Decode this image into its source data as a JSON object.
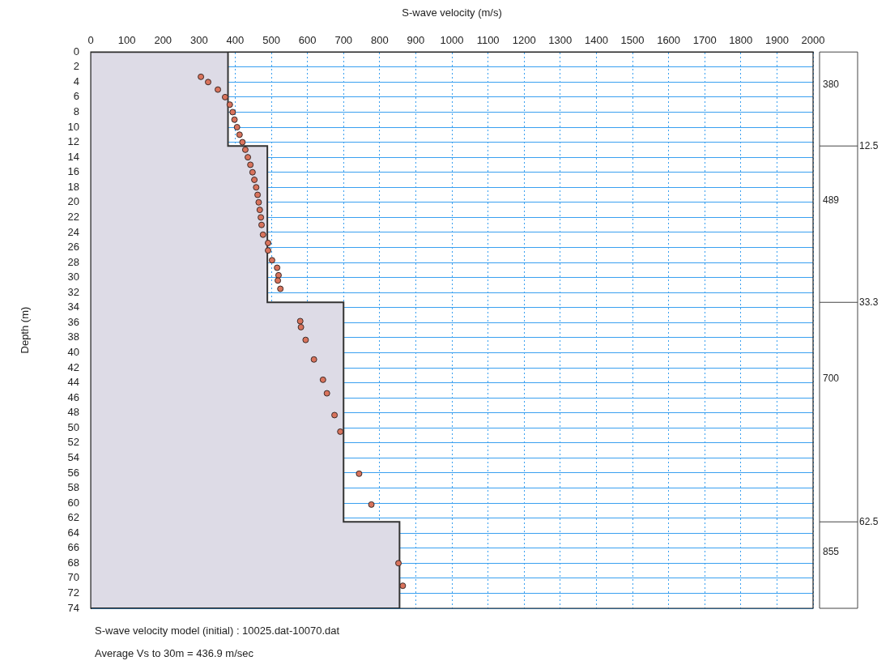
{
  "chart_data": {
    "type": "scatter",
    "xlabel": "S-wave velocity (m/s)",
    "ylabel": "Depth (m)",
    "xlim": [
      0,
      2000
    ],
    "xticks": [
      0,
      100,
      200,
      300,
      400,
      500,
      600,
      700,
      800,
      900,
      1000,
      1100,
      1200,
      1300,
      1400,
      1500,
      1600,
      1700,
      1800,
      1900,
      2000
    ],
    "ylim": [
      74,
      0
    ],
    "yticks": [
      0,
      2,
      4,
      6,
      8,
      10,
      12,
      14,
      16,
      18,
      20,
      22,
      24,
      26,
      28,
      30,
      32,
      34,
      36,
      38,
      40,
      42,
      44,
      46,
      48,
      50,
      52,
      54,
      56,
      58,
      60,
      62,
      64,
      66,
      68,
      70,
      72,
      74
    ],
    "grid": true,
    "legend": false,
    "series": [
      {
        "type": "area",
        "color": "#dddbe6",
        "x": [
          0,
          380,
          380,
          489,
          489,
          700,
          700,
          855,
          855,
          0
        ],
        "values": [
          0,
          0,
          12.5,
          12.5,
          33.3,
          33.3,
          62.5,
          62.5,
          74,
          74
        ]
      },
      {
        "marker": "circle",
        "color": "#d9735c",
        "x": [
          305,
          325,
          352,
          372,
          385,
          393,
          398,
          405,
          412,
          420,
          428,
          435,
          442,
          448,
          453,
          458,
          462,
          465,
          468,
          471,
          473,
          477,
          491,
          491,
          502,
          516,
          520,
          518,
          525,
          580,
          582,
          595,
          618,
          643,
          654,
          675,
          691,
          743,
          777,
          852,
          864
        ],
        "values": [
          3.3,
          4,
          5,
          6,
          7,
          8,
          9,
          10,
          11,
          12,
          13,
          14,
          15,
          16,
          17,
          18,
          19,
          20,
          21,
          22,
          23,
          24.3,
          25.4,
          26.4,
          27.7,
          28.7,
          29.7,
          30.4,
          31.5,
          35.8,
          36.6,
          38.3,
          40.9,
          43.6,
          45.4,
          48.3,
          50.5,
          56.1,
          60.2,
          68,
          71
        ]
      }
    ],
    "ref_lines": [
      {
        "axis": "y",
        "value": 12.5,
        "label": "12.5"
      },
      {
        "axis": "y",
        "value": 33.3,
        "label": "33.3"
      },
      {
        "axis": "y",
        "value": 62.5,
        "label": "62.5"
      }
    ],
    "annotations": [
      "380",
      "489",
      "700",
      "855",
      "S-wave velocity model (initial) : 10025.dat-10070.dat",
      "Average Vs to 30m = 436.9 m/sec"
    ]
  }
}
